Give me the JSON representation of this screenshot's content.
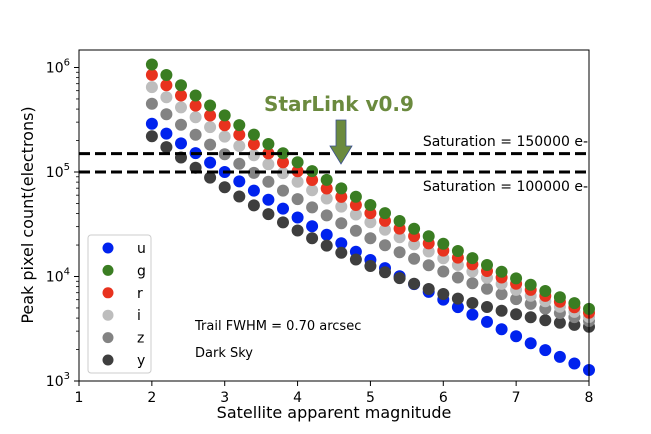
{
  "chart_data": {
    "type": "scatter",
    "xlabel": "Satellite apparent magnitude",
    "ylabel": "Peak pixel count(electrons)",
    "xlim": [
      1,
      8
    ],
    "ylim": [
      1000,
      1500000
    ],
    "yscale": "log",
    "grid": false,
    "legend_position": "lower-left",
    "x_ticks": [
      "1",
      "2",
      "3",
      "4",
      "5",
      "6",
      "7",
      "8"
    ],
    "y_ticks": [
      {
        "value": 1000,
        "base": "10",
        "exp": "3"
      },
      {
        "value": 10000,
        "base": "10",
        "exp": "4"
      },
      {
        "value": 100000,
        "base": "10",
        "exp": "5"
      },
      {
        "value": 1000000,
        "base": "10",
        "exp": "6"
      }
    ],
    "x": [
      2.0,
      2.2,
      2.4,
      2.6,
      2.8,
      3.0,
      3.2,
      3.4,
      3.6,
      3.8,
      4.0,
      4.2,
      4.4,
      4.6,
      4.8,
      5.0,
      5.2,
      5.4,
      5.6,
      5.8,
      6.0,
      6.2,
      6.4,
      6.6,
      6.8,
      7.0,
      7.2,
      7.4,
      7.6,
      7.8,
      8.0
    ],
    "series": [
      {
        "name": "u",
        "color": "#0022ee",
        "values": [
          289700,
          233000,
          187800,
          151700,
          122900,
          99890,
          81340,
          66400,
          54360,
          44620,
          36700,
          30290,
          25040,
          20770,
          17270,
          14390,
          12020,
          10070,
          8460,
          7120,
          6014,
          5090,
          4319,
          3675,
          3134,
          2680,
          2297,
          1975,
          1702,
          1471,
          1274
        ]
      },
      {
        "name": "g",
        "color": "#3a7d22",
        "values": [
          1069000,
          848000,
          675000,
          539000,
          432500,
          348000,
          281000,
          227900,
          185300,
          151300,
          124000,
          101900,
          84100,
          69700,
          57900,
          48300,
          40450,
          33980,
          28650,
          24240,
          20590,
          17550,
          15010,
          12890,
          11100,
          9600,
          8330,
          7260,
          6340,
          5565,
          4900
        ]
      },
      {
        "name": "r",
        "color": "#e8321e",
        "values": [
          849000,
          675000,
          539000,
          431800,
          347100,
          280300,
          227000,
          184600,
          150700,
          123500,
          101600,
          83850,
          69500,
          57800,
          48280,
          40460,
          34030,
          28740,
          24360,
          20730,
          17710,
          15180,
          13060,
          11280,
          9780,
          8515,
          7440,
          6520,
          5740,
          5075,
          4500
        ]
      },
      {
        "name": "i",
        "color": "#bdbdbd",
        "values": [
          650000,
          518500,
          415000,
          333600,
          269200,
          218000,
          177400,
          144800,
          118700,
          97700,
          80800,
          67000,
          55830,
          46690,
          39190,
          33040,
          27960,
          23750,
          20270,
          17360,
          14930,
          12880,
          11170,
          9720,
          8490,
          7445,
          6554,
          5799,
          5146,
          4585,
          4100
        ]
      },
      {
        "name": "z",
        "color": "#838383",
        "values": [
          449800,
          356400,
          283800,
          227200,
          182800,
          147800,
          120100,
          98050,
          80520,
          66410,
          55070,
          45880,
          38450,
          32360,
          27370,
          23280,
          19900,
          17090,
          14760,
          12800,
          11170,
          9786,
          8620,
          7632,
          6792,
          6074,
          5464,
          4934,
          4479,
          4087,
          3750
        ]
      },
      {
        "name": "y",
        "color": "#3e3e3e",
        "values": [
          219800,
          173200,
          137500,
          109800,
          88340,
          71540,
          58320,
          47870,
          39570,
          32930,
          27580,
          23260,
          19750,
          16880,
          14540,
          12590,
          10980,
          9647,
          8530,
          7595,
          6807,
          6142,
          5580,
          5104,
          4700,
          4358,
          4067,
          3822,
          3616,
          3445,
          3304
        ]
      }
    ],
    "hlines": [
      {
        "value": 150000,
        "label": "Saturation = 150000 e-",
        "style": "dashed"
      },
      {
        "value": 100000,
        "label": "Saturation = 100000 e-",
        "style": "dashed"
      }
    ],
    "annotations": [
      {
        "text": "StarLink v0.9",
        "x": 4.6,
        "y": 100000,
        "color": "#6b8a3e",
        "arrow_color": "#6b8a3e"
      },
      {
        "text": "Trail FWHM = 0.70 arcsec"
      },
      {
        "text": "Dark Sky"
      }
    ]
  }
}
